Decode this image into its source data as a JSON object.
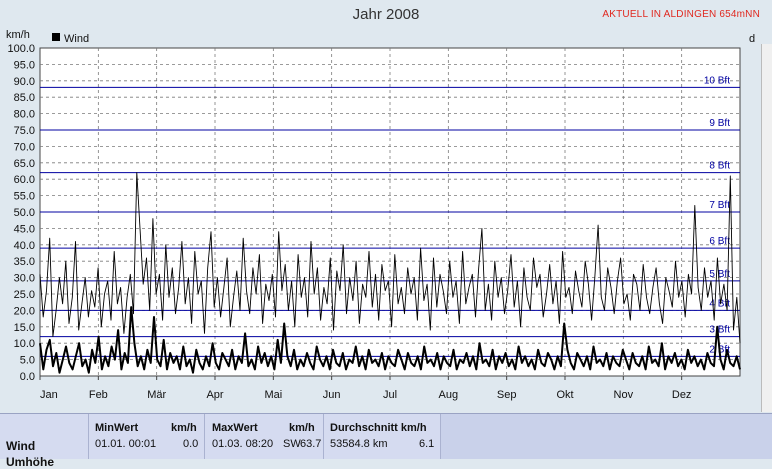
{
  "chart_data": {
    "type": "line",
    "title": "Jahr 2008",
    "ylabel": "km/h",
    "ylim": [
      0,
      100
    ],
    "yticks": [
      "0.0",
      "5.0",
      "10.0",
      "15.0",
      "20.0",
      "25.0",
      "30.0",
      "35.0",
      "40.0",
      "45.0",
      "50.0",
      "55.0",
      "60.0",
      "65.0",
      "70.0",
      "75.0",
      "80.0",
      "85.0",
      "90.0",
      "95.0",
      "100.0"
    ],
    "months": [
      "Jan",
      "Feb",
      "Mär",
      "Apr",
      "Mai",
      "Jun",
      "Jul",
      "Aug",
      "Sep",
      "Okt",
      "Nov",
      "Dez"
    ],
    "legend": "Wind",
    "right_axis_label": "d",
    "beaufort": [
      {
        "label": "10 Bft",
        "value": 88
      },
      {
        "label": "9 Bft",
        "value": 75
      },
      {
        "label": "8 Bft",
        "value": 62
      },
      {
        "label": "7 Bft",
        "value": 50
      },
      {
        "label": "6 Bft",
        "value": 39
      },
      {
        "label": "5 Bft",
        "value": 29
      },
      {
        "label": "4 Bft",
        "value": 20
      },
      {
        "label": "3 Bft",
        "value": 12
      },
      {
        "label": "2 Bft",
        "value": 6
      }
    ],
    "series": [
      {
        "name": "Wind",
        "style": "thin",
        "values": [
          31,
          18,
          26,
          42,
          12,
          20,
          30,
          22,
          35,
          16,
          24,
          41,
          14,
          22,
          30,
          18,
          26,
          21,
          33,
          15,
          25,
          29,
          17,
          38,
          22,
          27,
          13,
          24,
          31,
          19,
          62,
          45,
          28,
          36,
          20,
          48,
          25,
          31,
          17,
          40,
          24,
          33,
          19,
          27,
          41,
          22,
          30,
          16,
          38,
          25,
          29,
          13,
          33,
          44,
          21,
          30,
          18,
          27,
          36,
          15,
          24,
          32,
          20,
          42,
          26,
          19,
          33,
          25,
          37,
          16,
          28,
          23,
          31,
          18,
          44,
          26,
          34,
          20,
          29,
          15,
          37,
          24,
          30,
          18,
          41,
          25,
          33,
          17,
          27,
          22,
          36,
          14,
          32,
          26,
          40,
          19,
          30,
          23,
          35,
          16,
          28,
          24,
          38,
          21,
          31,
          17,
          34,
          26,
          29,
          15,
          37,
          22,
          27,
          19,
          33,
          25,
          30,
          17,
          39,
          23,
          28,
          14,
          36,
          21,
          31,
          26,
          19,
          35,
          24,
          29,
          16,
          38,
          22,
          27,
          31,
          18,
          33,
          45,
          20,
          28,
          17,
          35,
          24,
          30,
          19,
          26,
          37,
          21,
          29,
          15,
          33,
          24,
          20,
          36,
          27,
          31,
          18,
          25,
          34,
          22,
          29,
          16,
          38,
          24,
          27,
          19,
          32,
          26,
          21,
          35,
          28,
          17,
          30,
          46,
          24,
          20,
          33,
          27,
          19,
          29,
          36,
          22,
          25,
          17,
          31,
          28,
          20,
          34,
          24,
          19,
          27,
          33,
          22,
          16,
          30,
          26,
          21,
          35,
          24,
          29,
          18,
          31,
          25,
          52,
          27,
          20,
          33,
          24,
          29,
          17,
          36,
          22,
          28,
          20,
          61,
          14,
          24,
          10
        ]
      },
      {
        "name": "Wind",
        "style": "thick",
        "values": [
          10,
          2,
          8,
          11,
          3,
          7,
          1,
          5,
          9,
          4,
          2,
          6,
          10,
          3,
          5,
          1,
          8,
          4,
          12,
          2,
          6,
          3,
          9,
          5,
          14,
          2,
          7,
          4,
          21,
          10,
          3,
          6,
          2,
          8,
          4,
          18,
          5,
          3,
          11,
          2,
          7,
          4,
          6,
          2,
          9,
          3,
          5,
          1,
          8,
          4,
          2,
          6,
          3,
          10,
          4,
          2,
          7,
          5,
          3,
          8,
          2,
          6,
          4,
          13,
          3,
          5,
          2,
          9,
          4,
          7,
          3,
          6,
          2,
          11,
          4,
          16,
          6,
          3,
          8,
          2,
          5,
          3,
          7,
          4,
          2,
          9,
          5,
          3,
          6,
          2,
          8,
          4,
          3,
          7,
          2,
          5,
          4,
          9,
          3,
          6,
          2,
          8,
          4,
          5,
          3,
          7,
          2,
          6,
          4,
          3,
          8,
          5,
          2,
          7,
          4,
          3,
          6,
          2,
          9,
          4,
          5,
          3,
          7,
          2,
          6,
          4,
          3,
          8,
          2,
          5,
          4,
          7,
          3,
          6,
          2,
          10,
          4,
          5,
          3,
          8,
          2,
          6,
          4,
          7,
          3,
          5,
          2,
          9,
          4,
          6,
          3,
          5,
          2,
          8,
          4,
          3,
          7,
          5,
          2,
          6,
          3,
          16,
          8,
          4,
          2,
          7,
          5,
          3,
          6,
          2,
          9,
          4,
          5,
          3,
          7,
          2,
          6,
          4,
          3,
          8,
          5,
          2,
          7,
          4,
          3,
          6,
          2,
          9,
          4,
          5,
          3,
          10,
          2,
          6,
          4,
          7,
          3,
          5,
          2,
          8,
          4,
          6,
          3,
          5,
          2,
          7,
          4,
          3,
          15,
          5,
          2,
          8,
          4,
          3,
          6,
          2
        ]
      }
    ]
  },
  "table": {
    "row_label": "Wind",
    "row_label_2": "Umhöhe",
    "min_header": "MinWert",
    "min_unit": "km/h",
    "min_date": "01.01.  00:01",
    "min_value": "0.0",
    "max_header": "MaxWert",
    "max_unit": "km/h",
    "max_date": "01.03.  08:20",
    "max_dir": "SW",
    "max_value": "63.7",
    "avg_header": "Durchschnitt km/h",
    "avg_distance": "53584.8 km",
    "avg_value": "6.1"
  },
  "live_label": "AKTUELL IN ALDINGEN 654mNN",
  "colors": {
    "beaufort": "#0000a0",
    "grid": "#7a7a7a",
    "series": "#000000"
  }
}
